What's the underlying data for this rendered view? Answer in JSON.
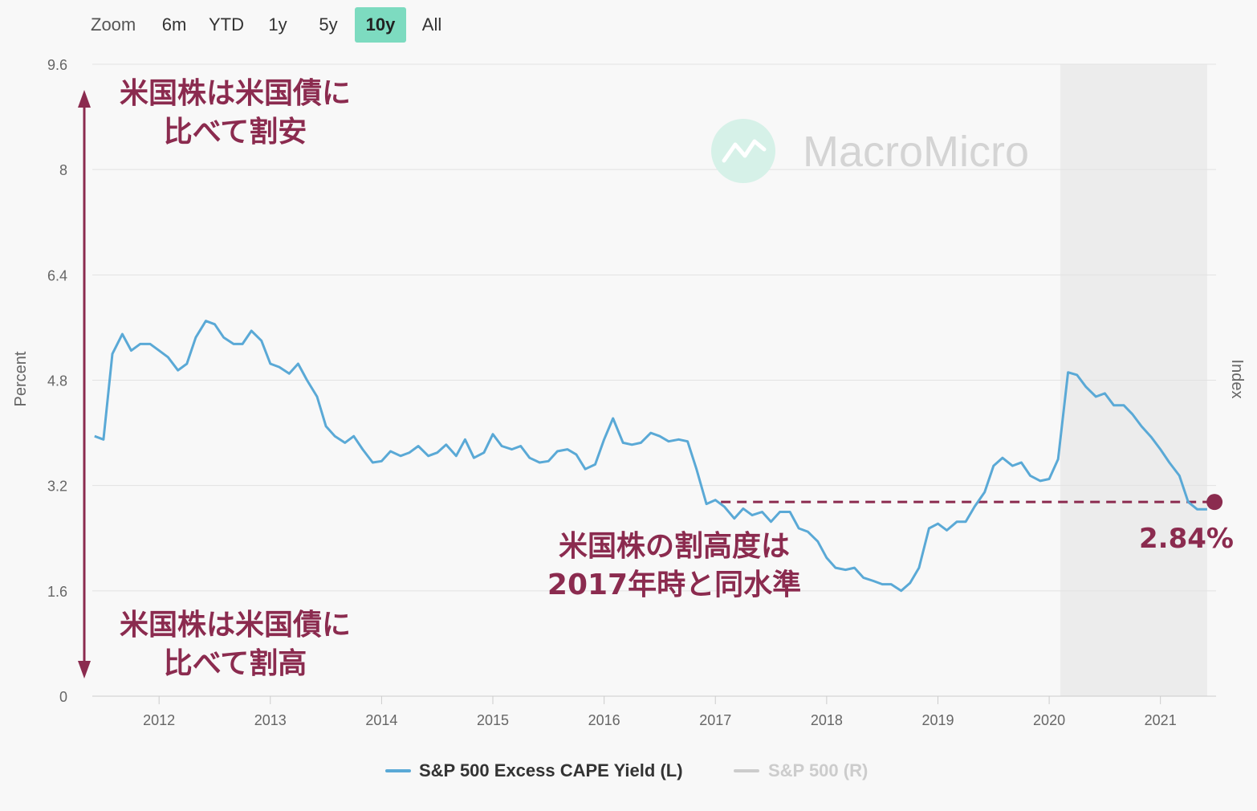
{
  "zoom": {
    "label": "Zoom",
    "buttons": [
      {
        "label": "6m",
        "active": false
      },
      {
        "label": "YTD",
        "active": false
      },
      {
        "label": "1y",
        "active": false
      },
      {
        "label": "5y",
        "active": false
      },
      {
        "label": "10y",
        "active": true
      },
      {
        "label": "All",
        "active": false
      }
    ]
  },
  "watermark": "MacroMicro",
  "colors": {
    "series": "#5aa9d6",
    "annotation": "#8b2b4f",
    "accent": "#7ddbc0",
    "legend_inactive": "#cccccc",
    "shade": "#ececec"
  },
  "annotations": {
    "top_line1": "米国株は米国債に",
    "top_line2": "比べて割安",
    "bottom_line1": "米国株は米国債に",
    "bottom_line2": "比べて割高",
    "middle_line1": "米国株の割高度は",
    "middle_line2": "2017年時と同水準",
    "current_value": "2.84%"
  },
  "legend": [
    {
      "label": "S&P 500 Excess CAPE Yield (L)",
      "active": true
    },
    {
      "label": "S&P 500 (R)",
      "active": false
    }
  ],
  "chart_data": {
    "type": "line",
    "ylabel": "Percent",
    "y2label": "Index",
    "ylim": [
      0,
      9.6
    ],
    "yticks": [
      "0",
      "1.6",
      "3.2",
      "4.8",
      "6.4",
      "8",
      "9.6"
    ],
    "xlim": [
      2011.4,
      2021.5
    ],
    "xticks": [
      "2012",
      "2013",
      "2014",
      "2015",
      "2016",
      "2017",
      "2018",
      "2019",
      "2020",
      "2021"
    ],
    "grid": true,
    "legend_position": "bottom",
    "shaded_region": [
      2020.1,
      2021.42
    ],
    "reference_level": {
      "start": 2017.05,
      "end": 2021.45,
      "value": 2.95
    },
    "series": [
      {
        "name": "S&P 500 Excess CAPE Yield (L)",
        "points": [
          [
            2011.42,
            3.95
          ],
          [
            2011.5,
            3.9
          ],
          [
            2011.58,
            5.2
          ],
          [
            2011.67,
            5.5
          ],
          [
            2011.75,
            5.25
          ],
          [
            2011.83,
            5.35
          ],
          [
            2011.92,
            5.35
          ],
          [
            2012.0,
            5.25
          ],
          [
            2012.08,
            5.15
          ],
          [
            2012.17,
            4.95
          ],
          [
            2012.25,
            5.05
          ],
          [
            2012.33,
            5.45
          ],
          [
            2012.42,
            5.7
          ],
          [
            2012.5,
            5.65
          ],
          [
            2012.58,
            5.45
          ],
          [
            2012.67,
            5.35
          ],
          [
            2012.75,
            5.35
          ],
          [
            2012.83,
            5.55
          ],
          [
            2012.92,
            5.4
          ],
          [
            2013.0,
            5.05
          ],
          [
            2013.08,
            5.0
          ],
          [
            2013.17,
            4.9
          ],
          [
            2013.25,
            5.05
          ],
          [
            2013.33,
            4.8
          ],
          [
            2013.42,
            4.55
          ],
          [
            2013.5,
            4.1
          ],
          [
            2013.58,
            3.95
          ],
          [
            2013.67,
            3.85
          ],
          [
            2013.75,
            3.95
          ],
          [
            2013.83,
            3.75
          ],
          [
            2013.92,
            3.55
          ],
          [
            2014.0,
            3.57
          ],
          [
            2014.08,
            3.72
          ],
          [
            2014.17,
            3.65
          ],
          [
            2014.25,
            3.7
          ],
          [
            2014.33,
            3.8
          ],
          [
            2014.42,
            3.65
          ],
          [
            2014.5,
            3.7
          ],
          [
            2014.58,
            3.82
          ],
          [
            2014.67,
            3.65
          ],
          [
            2014.75,
            3.9
          ],
          [
            2014.83,
            3.62
          ],
          [
            2014.92,
            3.7
          ],
          [
            2015.0,
            3.98
          ],
          [
            2015.08,
            3.8
          ],
          [
            2015.17,
            3.75
          ],
          [
            2015.25,
            3.8
          ],
          [
            2015.33,
            3.62
          ],
          [
            2015.42,
            3.55
          ],
          [
            2015.5,
            3.57
          ],
          [
            2015.58,
            3.72
          ],
          [
            2015.67,
            3.75
          ],
          [
            2015.75,
            3.67
          ],
          [
            2015.83,
            3.45
          ],
          [
            2015.92,
            3.52
          ],
          [
            2016.0,
            3.9
          ],
          [
            2016.08,
            4.22
          ],
          [
            2016.17,
            3.85
          ],
          [
            2016.25,
            3.82
          ],
          [
            2016.33,
            3.85
          ],
          [
            2016.42,
            4.0
          ],
          [
            2016.5,
            3.95
          ],
          [
            2016.58,
            3.87
          ],
          [
            2016.67,
            3.9
          ],
          [
            2016.75,
            3.87
          ],
          [
            2016.83,
            3.45
          ],
          [
            2016.92,
            2.92
          ],
          [
            2017.0,
            2.98
          ],
          [
            2017.08,
            2.88
          ],
          [
            2017.17,
            2.7
          ],
          [
            2017.25,
            2.85
          ],
          [
            2017.33,
            2.75
          ],
          [
            2017.42,
            2.8
          ],
          [
            2017.5,
            2.65
          ],
          [
            2017.58,
            2.8
          ],
          [
            2017.67,
            2.8
          ],
          [
            2017.75,
            2.55
          ],
          [
            2017.83,
            2.5
          ],
          [
            2017.92,
            2.35
          ],
          [
            2018.0,
            2.1
          ],
          [
            2018.08,
            1.95
          ],
          [
            2018.17,
            1.92
          ],
          [
            2018.25,
            1.95
          ],
          [
            2018.33,
            1.8
          ],
          [
            2018.42,
            1.75
          ],
          [
            2018.5,
            1.7
          ],
          [
            2018.58,
            1.7
          ],
          [
            2018.67,
            1.6
          ],
          [
            2018.75,
            1.72
          ],
          [
            2018.83,
            1.95
          ],
          [
            2018.92,
            2.55
          ],
          [
            2019.0,
            2.62
          ],
          [
            2019.08,
            2.52
          ],
          [
            2019.17,
            2.65
          ],
          [
            2019.25,
            2.65
          ],
          [
            2019.33,
            2.88
          ],
          [
            2019.42,
            3.1
          ],
          [
            2019.5,
            3.5
          ],
          [
            2019.58,
            3.62
          ],
          [
            2019.67,
            3.5
          ],
          [
            2019.75,
            3.55
          ],
          [
            2019.83,
            3.35
          ],
          [
            2019.92,
            3.27
          ],
          [
            2020.0,
            3.3
          ],
          [
            2020.08,
            3.6
          ],
          [
            2020.17,
            4.92
          ],
          [
            2020.25,
            4.88
          ],
          [
            2020.33,
            4.7
          ],
          [
            2020.42,
            4.55
          ],
          [
            2020.5,
            4.6
          ],
          [
            2020.58,
            4.42
          ],
          [
            2020.67,
            4.42
          ],
          [
            2020.75,
            4.28
          ],
          [
            2020.83,
            4.1
          ],
          [
            2020.92,
            3.93
          ],
          [
            2021.0,
            3.75
          ],
          [
            2021.08,
            3.55
          ],
          [
            2021.17,
            3.35
          ],
          [
            2021.25,
            2.95
          ],
          [
            2021.33,
            2.84
          ],
          [
            2021.42,
            2.84
          ]
        ]
      },
      {
        "name": "S&P 500 (R)",
        "points": []
      }
    ]
  }
}
